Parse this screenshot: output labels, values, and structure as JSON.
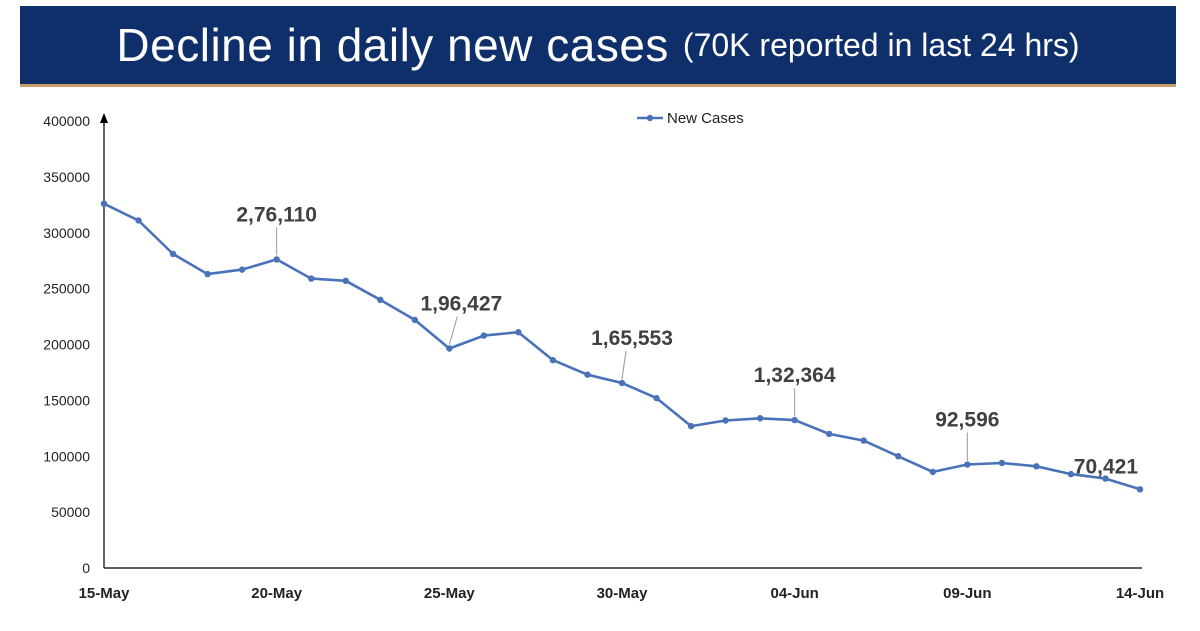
{
  "header": {
    "title": "Decline in daily new cases",
    "subtitle": "(70K reported in last 24 hrs)"
  },
  "colors": {
    "banner_bg": "#0f2f6b",
    "series": "#4a72b8"
  },
  "chart_data": {
    "type": "line",
    "title": "",
    "xlabel": "",
    "ylabel": "",
    "ylim": [
      0,
      400000
    ],
    "y_ticks": [
      "0",
      "50000",
      "100000",
      "150000",
      "200000",
      "250000",
      "300000",
      "350000",
      "400000"
    ],
    "x_tick_labels": [
      {
        "label": "15-May",
        "index": 0
      },
      {
        "label": "20-May",
        "index": 5
      },
      {
        "label": "25-May",
        "index": 10
      },
      {
        "label": "30-May",
        "index": 15
      },
      {
        "label": "04-Jun",
        "index": 20
      },
      {
        "label": "09-Jun",
        "index": 25
      },
      {
        "label": "14-Jun",
        "index": 30
      }
    ],
    "legend": {
      "placement": "top-center"
    },
    "grid": false,
    "series": [
      {
        "name": "New Cases",
        "x": [
          "15-May",
          "16-May",
          "17-May",
          "18-May",
          "19-May",
          "20-May",
          "21-May",
          "22-May",
          "23-May",
          "24-May",
          "25-May",
          "26-May",
          "27-May",
          "28-May",
          "29-May",
          "30-May",
          "31-May",
          "01-Jun",
          "02-Jun",
          "03-Jun",
          "04-Jun",
          "05-Jun",
          "06-Jun",
          "07-Jun",
          "08-Jun",
          "09-Jun",
          "10-Jun",
          "11-Jun",
          "12-Jun",
          "13-Jun",
          "14-Jun"
        ],
        "values": [
          326000,
          311000,
          281000,
          263000,
          267000,
          276110,
          259000,
          257000,
          240000,
          222000,
          196427,
          208000,
          211000,
          186000,
          173000,
          165553,
          152000,
          127000,
          132000,
          134000,
          132364,
          120000,
          114000,
          100000,
          86000,
          92596,
          94000,
          91000,
          84000,
          80000,
          70421
        ]
      }
    ],
    "annotations": [
      {
        "index": 5,
        "text": "2,76,110"
      },
      {
        "index": 10,
        "text": "1,96,427"
      },
      {
        "index": 15,
        "text": "1,65,553"
      },
      {
        "index": 20,
        "text": "1,32,364"
      },
      {
        "index": 25,
        "text": "92,596"
      },
      {
        "index": 30,
        "text": "70,421"
      }
    ]
  }
}
